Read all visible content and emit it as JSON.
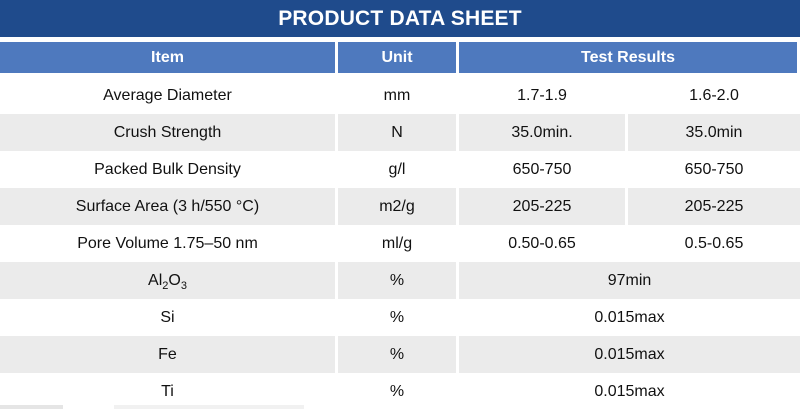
{
  "title": "PRODUCT DATA SHEET",
  "colors": {
    "title_bar": "#1F4B8C",
    "header_row": "#4E79BE",
    "alt_row": "#EBEBEB",
    "text": "#111111"
  },
  "table": {
    "headers": {
      "item": "Item",
      "unit": "Unit",
      "test_results": "Test Results"
    },
    "rows": [
      {
        "item": "Average Diameter",
        "unit": "mm",
        "result_a": "1.7-1.9",
        "result_b": "1.6-2.0"
      },
      {
        "item": "Crush Strength",
        "unit": "N",
        "result_a": "35.0min.",
        "result_b": "35.0min"
      },
      {
        "item": "Packed Bulk Density",
        "unit": "g/l",
        "result_a": "650-750",
        "result_b": "650-750"
      },
      {
        "item": "Surface Area (3 h/550 °C)",
        "unit": "m2/g",
        "result_a": "205-225",
        "result_b": "205-225"
      },
      {
        "item": "Pore Volume 1.75–50 nm",
        "unit": "ml/g",
        "result_a": "0.50-0.65",
        "result_b": "0.5-0.65"
      },
      {
        "item_parts": [
          "Al",
          "2",
          "O",
          "3"
        ],
        "unit": "%",
        "result_merged": "97min"
      },
      {
        "item": "Si",
        "unit": "%",
        "result_merged": "0.015max"
      },
      {
        "item": "Fe",
        "unit": "%",
        "result_merged": "0.015max"
      },
      {
        "item": "Ti",
        "unit": "%",
        "result_merged": "0.015max"
      }
    ]
  }
}
